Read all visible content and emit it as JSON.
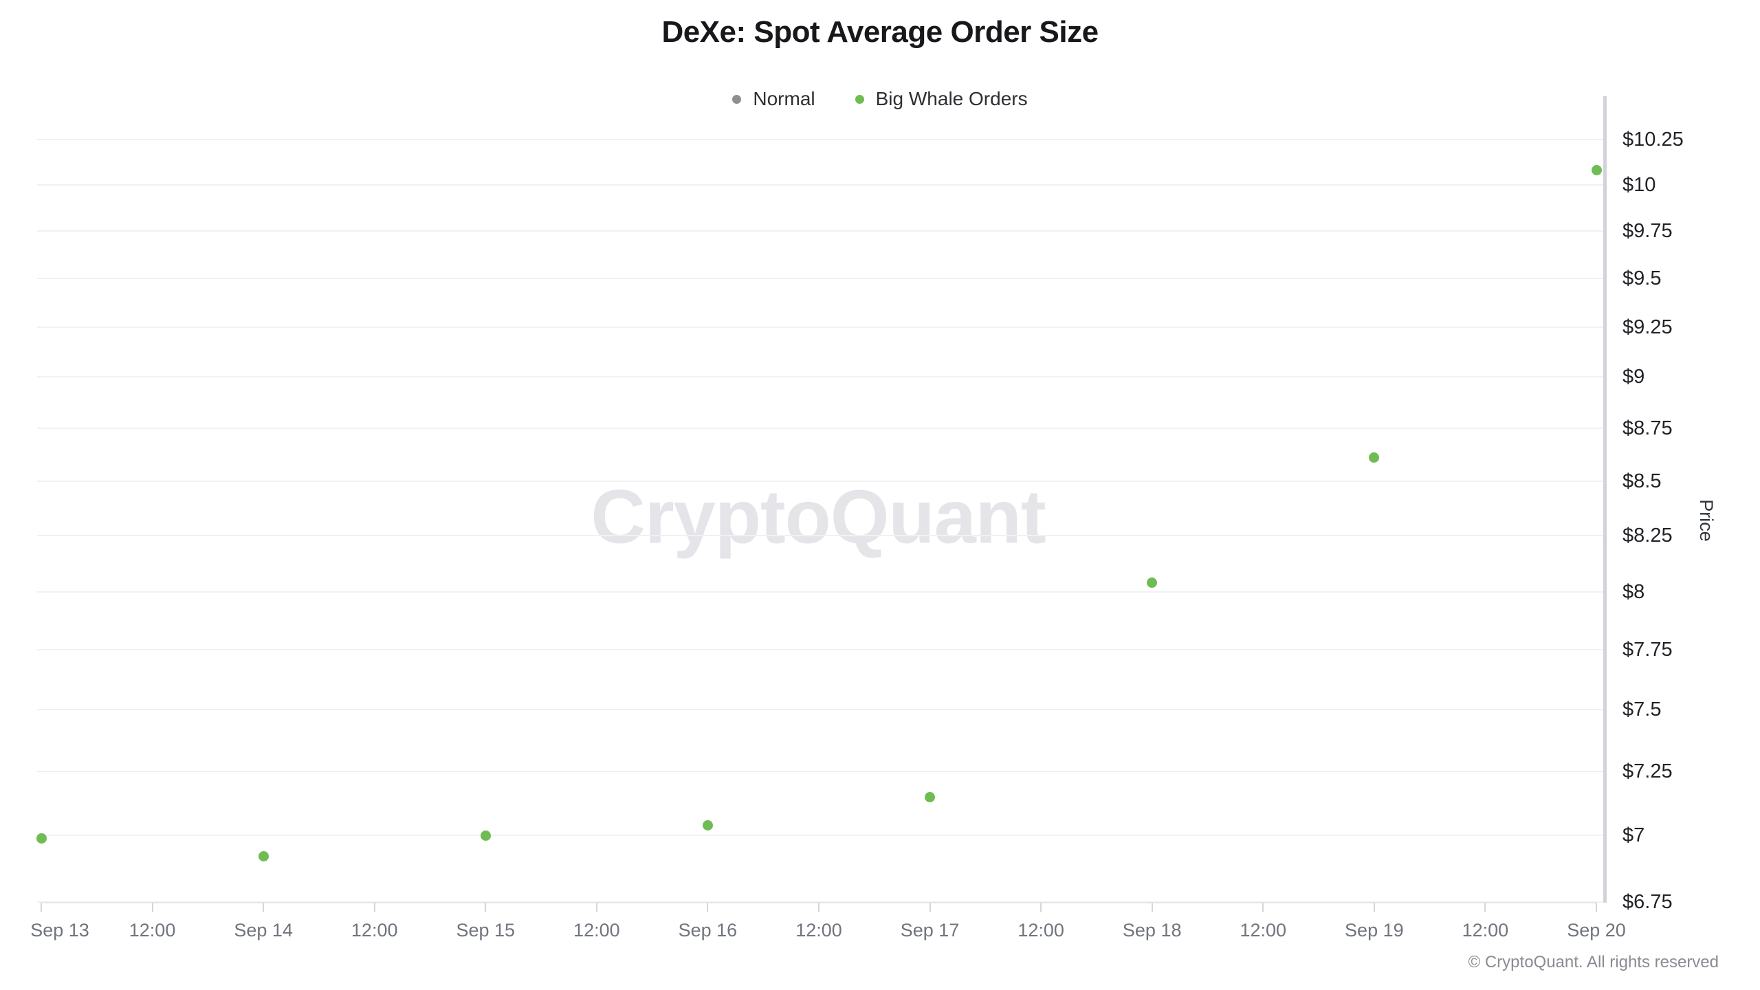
{
  "chart_data": {
    "type": "scatter",
    "title": "DeXe: Spot Average Order Size",
    "ylabel": "Price",
    "y_scale": "log",
    "ylim": [
      6.75,
      10.25
    ],
    "y_ticks": [
      10.25,
      10,
      9.75,
      9.5,
      9.25,
      9,
      8.75,
      8.5,
      8.25,
      8,
      7.75,
      7.5,
      7.25,
      7,
      6.75
    ],
    "y_tick_labels": [
      "$10.25",
      "$10",
      "$9.75",
      "$9.5",
      "$9.25",
      "$9",
      "$8.75",
      "$8.5",
      "$8.25",
      "$8",
      "$7.75",
      "$7.5",
      "$7.25",
      "$7",
      "$6.75"
    ],
    "x_range_days": 7,
    "x_tick_labels": [
      "Sep 13",
      "12:00",
      "Sep 14",
      "12:00",
      "Sep 15",
      "12:00",
      "Sep 16",
      "12:00",
      "Sep 17",
      "12:00",
      "Sep 18",
      "12:00",
      "Sep 19",
      "12:00",
      "Sep 20"
    ],
    "grid": "horizontal-only",
    "legend_position": "top-center",
    "legend": [
      {
        "name": "Normal",
        "color": "#8f8f8f"
      },
      {
        "name": "Big Whale Orders",
        "color": "#6fbc53"
      }
    ],
    "series": [
      {
        "name": "Normal",
        "color": "#8f8f8f",
        "points": []
      },
      {
        "name": "Big Whale Orders",
        "color": "#6fbc53",
        "points": [
          {
            "x": "Sep 13",
            "day_offset": 0,
            "value": 6.99
          },
          {
            "x": "Sep 14",
            "day_offset": 1,
            "value": 6.92
          },
          {
            "x": "Sep 15",
            "day_offset": 2,
            "value": 7.0
          },
          {
            "x": "Sep 16",
            "day_offset": 3,
            "value": 7.04
          },
          {
            "x": "Sep 17",
            "day_offset": 4,
            "value": 7.15
          },
          {
            "x": "Sep 18",
            "day_offset": 5,
            "value": 8.04
          },
          {
            "x": "Sep 19",
            "day_offset": 6,
            "value": 8.61
          },
          {
            "x": "Sep 20",
            "day_offset": 7,
            "value": 10.08
          }
        ]
      }
    ],
    "watermark": "CryptoQuant",
    "copyright": "© CryptoQuant. All rights reserved"
  }
}
